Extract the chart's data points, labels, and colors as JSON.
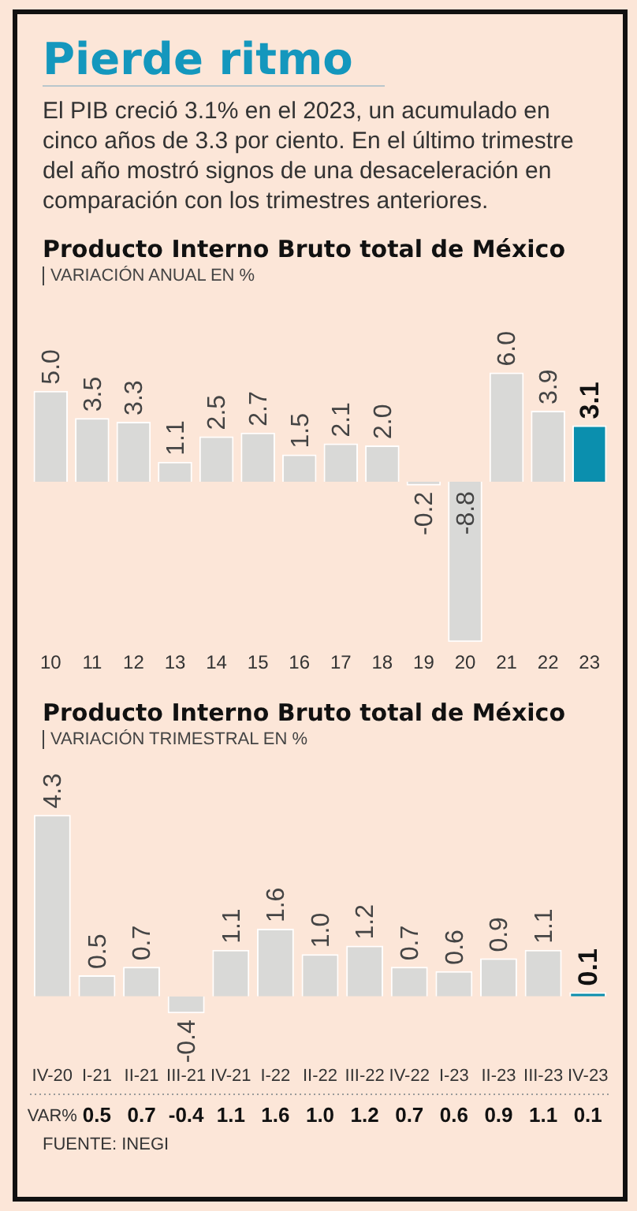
{
  "chart_data": [
    {
      "type": "other",
      "title": "Pierde ritmo",
      "subtitle": "El PIB creció 3.1% en el 2023, un acumulado en cinco años de 3.3 por ciento. En el último trimestre del año mostró signos de una desaceleración en comparación con los trimestres anteriores."
    },
    {
      "type": "bar",
      "title": "Producto Interno Bruto total de México",
      "subtitle": "VARIACIÓN ANUAL EN %",
      "categories": [
        "10",
        "11",
        "12",
        "13",
        "14",
        "15",
        "16",
        "17",
        "18",
        "19",
        "20",
        "21",
        "22",
        "23"
      ],
      "values": [
        5.0,
        3.5,
        3.3,
        1.1,
        2.5,
        2.7,
        1.5,
        2.1,
        2.0,
        -0.2,
        -8.8,
        6.0,
        3.9,
        3.1
      ],
      "value_labels": [
        "5.0",
        "3.5",
        "3.3",
        "1.1",
        "2.5",
        "2.7",
        "1.5",
        "2.1",
        "2.0",
        "-0.2",
        "-8.8",
        "6.0",
        "3.9",
        "3.1"
      ],
      "colors": [
        "#d9d9d7",
        "#d9d9d7",
        "#d9d9d7",
        "#d9d9d7",
        "#d9d9d7",
        "#d9d9d7",
        "#d9d9d7",
        "#d9d9d7",
        "#d9d9d7",
        "#d9d9d7",
        "#d9d9d7",
        "#d9d9d7",
        "#d9d9d7",
        "#0b8fae"
      ],
      "tick_labels": "x",
      "grid": false
    },
    {
      "type": "bar",
      "title": "Producto Interno Bruto total de México",
      "subtitle": "VARIACIÓN TRIMESTRAL EN %",
      "categories": [
        "IV-20",
        "I-21",
        "II-21",
        "III-21",
        "IV-21",
        "I-22",
        "II-22",
        "III-22",
        "IV-22",
        "I-23",
        "II-23",
        "III-23",
        "IV-23"
      ],
      "values": [
        4.3,
        0.5,
        0.7,
        -0.4,
        1.1,
        1.6,
        1.0,
        1.2,
        0.7,
        0.6,
        0.9,
        1.1,
        0.1
      ],
      "value_labels": [
        "4.3",
        "0.5",
        "0.7",
        "-0.4",
        "1.1",
        "1.6",
        "1.0",
        "1.2",
        "0.7",
        "0.6",
        "0.9",
        "1.1",
        "0.1"
      ],
      "colors": [
        "#d9d9d7",
        "#d9d9d7",
        "#d9d9d7",
        "#d9d9d7",
        "#d9d9d7",
        "#d9d9d7",
        "#d9d9d7",
        "#d9d9d7",
        "#d9d9d7",
        "#d9d9d7",
        "#d9d9d7",
        "#d9d9d7",
        "#0b8fae"
      ],
      "tick_labels": "x",
      "grid": false,
      "annotations": [
        "VAR%",
        "FUENTE: INEGI"
      ]
    }
  ]
}
